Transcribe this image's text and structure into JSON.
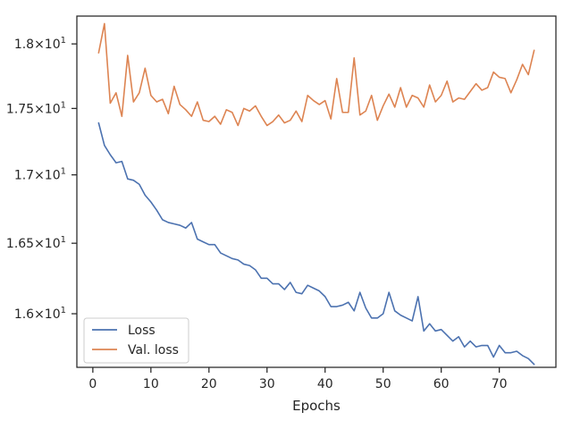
{
  "chart_data": {
    "type": "line",
    "title": "",
    "xlabel": "Epochs",
    "ylabel": "",
    "yscale": "log",
    "xlim": [
      -2.75,
      79.75
    ],
    "ylim": [
      15.63,
      18.22
    ],
    "xticks": [
      0,
      10,
      20,
      30,
      40,
      50,
      60,
      70
    ],
    "xtick_labels": [
      "0",
      "10",
      "20",
      "30",
      "40",
      "50",
      "60",
      "70"
    ],
    "yticks": [
      16.0,
      16.5,
      17.0,
      17.5,
      18.0
    ],
    "ytick_labels": [
      {
        "base": "1.6",
        "exp": "1"
      },
      {
        "base": "1.65",
        "exp": "1"
      },
      {
        "base": "1.7",
        "exp": "1"
      },
      {
        "base": "1.75",
        "exp": "1"
      },
      {
        "base": "1.8",
        "exp": "1"
      }
    ],
    "grid": false,
    "legend_position": "lower-left",
    "x": [
      1,
      2,
      3,
      4,
      5,
      6,
      7,
      8,
      9,
      10,
      11,
      12,
      13,
      14,
      15,
      16,
      17,
      18,
      19,
      20,
      21,
      22,
      23,
      24,
      25,
      26,
      27,
      28,
      29,
      30,
      31,
      32,
      33,
      34,
      35,
      36,
      37,
      38,
      39,
      40,
      41,
      42,
      43,
      44,
      45,
      46,
      47,
      48,
      49,
      50,
      51,
      52,
      53,
      54,
      55,
      56,
      57,
      58,
      59,
      60,
      61,
      62,
      63,
      64,
      65,
      66,
      67,
      68,
      69,
      70,
      71,
      72,
      73,
      74,
      75,
      76
    ],
    "series": [
      {
        "name": "Loss",
        "color": "#4c72b0",
        "values": [
          17.39,
          17.22,
          17.15,
          17.09,
          17.1,
          16.97,
          16.96,
          16.93,
          16.85,
          16.8,
          16.74,
          16.67,
          16.65,
          16.64,
          16.63,
          16.61,
          16.65,
          16.53,
          16.51,
          16.49,
          16.49,
          16.43,
          16.41,
          16.39,
          16.38,
          16.35,
          16.34,
          16.31,
          16.25,
          16.25,
          16.21,
          16.21,
          16.17,
          16.22,
          16.15,
          16.14,
          16.2,
          16.18,
          16.16,
          16.12,
          16.05,
          16.05,
          16.06,
          16.08,
          16.02,
          16.15,
          16.04,
          15.97,
          15.97,
          16.0,
          16.15,
          16.02,
          15.99,
          15.97,
          15.95,
          16.12,
          15.88,
          15.93,
          15.88,
          15.89,
          15.85,
          15.81,
          15.84,
          15.77,
          15.81,
          15.77,
          15.78,
          15.78,
          15.7,
          15.78,
          15.73,
          15.73,
          15.74,
          15.71,
          15.69,
          15.65
        ]
      },
      {
        "name": "Val. loss",
        "color": "#dd8452",
        "values": [
          17.93,
          18.16,
          17.54,
          17.62,
          17.44,
          17.91,
          17.55,
          17.62,
          17.81,
          17.6,
          17.55,
          17.57,
          17.46,
          17.67,
          17.53,
          17.49,
          17.44,
          17.55,
          17.41,
          17.4,
          17.44,
          17.38,
          17.49,
          17.47,
          17.37,
          17.5,
          17.48,
          17.52,
          17.44,
          17.37,
          17.4,
          17.45,
          17.39,
          17.41,
          17.48,
          17.4,
          17.6,
          17.56,
          17.53,
          17.56,
          17.42,
          17.73,
          17.47,
          17.47,
          17.89,
          17.45,
          17.48,
          17.6,
          17.41,
          17.52,
          17.61,
          17.51,
          17.66,
          17.51,
          17.6,
          17.58,
          17.51,
          17.68,
          17.55,
          17.6,
          17.71,
          17.55,
          17.58,
          17.57,
          17.63,
          17.69,
          17.64,
          17.66,
          17.78,
          17.74,
          17.73,
          17.62,
          17.72,
          17.84,
          17.76,
          17.95
        ]
      }
    ]
  }
}
